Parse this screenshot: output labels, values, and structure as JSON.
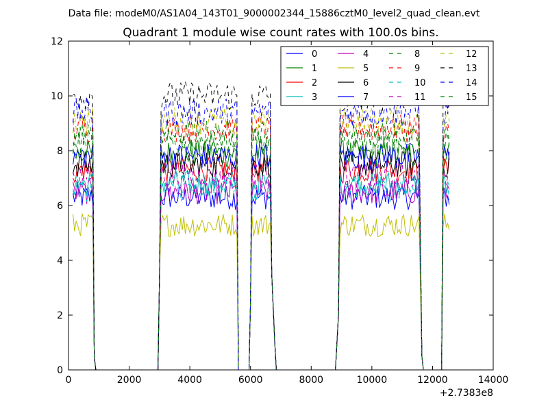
{
  "chart_data": {
    "type": "line",
    "suptitle": "Data file: modeM0/AS1A04_143T01_9000002344_15886cztM0_level2_quad_clean.evt",
    "title": "Quadrant 1 module wise count rates with 100.0s bins.",
    "xlabel": "",
    "ylabel": "",
    "x_offset_label": "+2.7383e8",
    "xlim": [
      0,
      14000
    ],
    "ylim": [
      0,
      12
    ],
    "xticks": [
      0,
      2000,
      4000,
      6000,
      8000,
      10000,
      12000,
      14000
    ],
    "xtick_labels": [
      "0",
      "2000",
      "4000",
      "6000",
      "8000",
      "10000",
      "12000",
      "14000"
    ],
    "yticks": [
      0,
      2,
      4,
      6,
      8,
      10,
      12
    ],
    "ytick_labels": [
      "0",
      "2",
      "4",
      "6",
      "8",
      "10",
      "12"
    ],
    "legend_position": "top-right",
    "segments": [
      {
        "start": 150,
        "end": 800,
        "edges": [
          [
            850,
            0.5
          ],
          [
            900,
            0
          ]
        ]
      },
      {
        "start": 3050,
        "end": 5550,
        "edges": [
          [
            2950,
            0
          ],
          [
            3000,
            3.5
          ],
          [
            5600,
            0
          ]
        ]
      },
      {
        "start": 6050,
        "end": 6650,
        "edges": [
          [
            5950,
            0
          ],
          [
            6000,
            2.5
          ],
          [
            6700,
            3.5
          ],
          [
            6800,
            1
          ],
          [
            6850,
            0
          ]
        ]
      },
      {
        "start": 8950,
        "end": 11550,
        "edges": [
          [
            8800,
            0
          ],
          [
            8900,
            2
          ],
          [
            11650,
            0.5
          ],
          [
            11700,
            0
          ]
        ]
      },
      {
        "start": 12350,
        "end": 12550,
        "edges": [
          [
            12300,
            0
          ]
        ]
      }
    ],
    "series": [
      {
        "name": "0",
        "color": "#0000ff",
        "dash": "solid",
        "level": 6.3
      },
      {
        "name": "1",
        "color": "#008000",
        "dash": "solid",
        "level": 7.9
      },
      {
        "name": "2",
        "color": "#ff0000",
        "dash": "solid",
        "level": 7.3
      },
      {
        "name": "3",
        "color": "#00bfbf",
        "dash": "solid",
        "level": 6.8
      },
      {
        "name": "4",
        "color": "#bf00bf",
        "dash": "solid",
        "level": 6.5
      },
      {
        "name": "5",
        "color": "#bfbf00",
        "dash": "solid",
        "level": 5.3
      },
      {
        "name": "6",
        "color": "#000000",
        "dash": "solid",
        "level": 7.5
      },
      {
        "name": "7",
        "color": "#0000ff",
        "dash": "solid",
        "level": 7.8
      },
      {
        "name": "8",
        "color": "#008000",
        "dash": "dashed",
        "level": 8.6
      },
      {
        "name": "9",
        "color": "#ff0000",
        "dash": "dashed",
        "level": 8.8
      },
      {
        "name": "10",
        "color": "#00bfbf",
        "dash": "dashed",
        "level": 6.6
      },
      {
        "name": "11",
        "color": "#bf00bf",
        "dash": "dashed",
        "level": 7.1
      },
      {
        "name": "12",
        "color": "#bfbf00",
        "dash": "dashed",
        "level": 9.1
      },
      {
        "name": "13",
        "color": "#000000",
        "dash": "dashed",
        "level": 10.0
      },
      {
        "name": "14",
        "color": "#0000ff",
        "dash": "dashed",
        "level": 9.4
      },
      {
        "name": "15",
        "color": "#008000",
        "dash": "dashed",
        "level": 8.3
      }
    ]
  }
}
